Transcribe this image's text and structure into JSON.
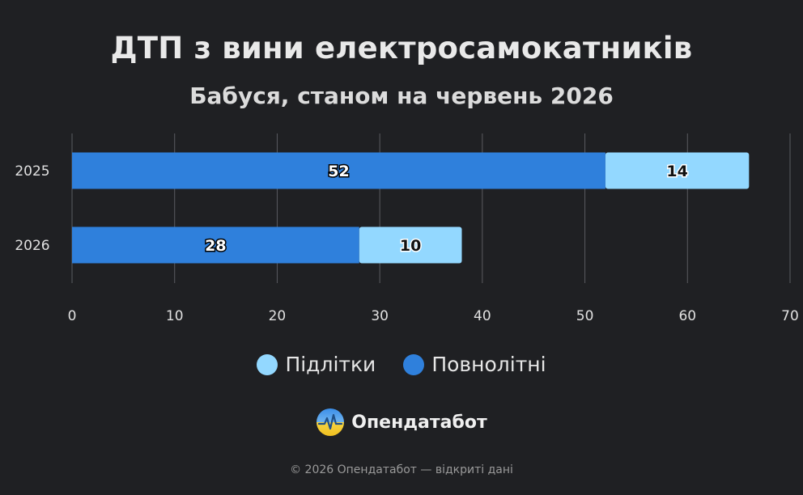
{
  "chart_data": {
    "type": "bar",
    "orientation": "horizontal",
    "stacked": true,
    "title": "ДТП з вини електросамокатників",
    "subtitle": "Бабуся, станом на червень 2026",
    "categories": [
      "2025",
      "2026"
    ],
    "series": [
      {
        "name": "Повнолітні",
        "values": [
          52,
          28
        ],
        "color": "#2f80dc"
      },
      {
        "name": "Підлітки",
        "values": [
          14,
          10
        ],
        "color": "#93d8ff"
      }
    ],
    "xlim": [
      0,
      70
    ],
    "xticks": [
      0,
      10,
      20,
      30,
      40,
      50,
      60,
      70
    ],
    "grid": true,
    "legend": [
      "Підлітки",
      "Повнолітні"
    ],
    "legend_position": "bottom"
  },
  "brand": {
    "name": "Опендатабот",
    "icon": "pulse-logo-icon"
  },
  "footer": {
    "copyright": "© 2026 Опендатабот — відкриті дані"
  },
  "colors": {
    "background": "#1f2023",
    "grid": "#5a5b60"
  }
}
